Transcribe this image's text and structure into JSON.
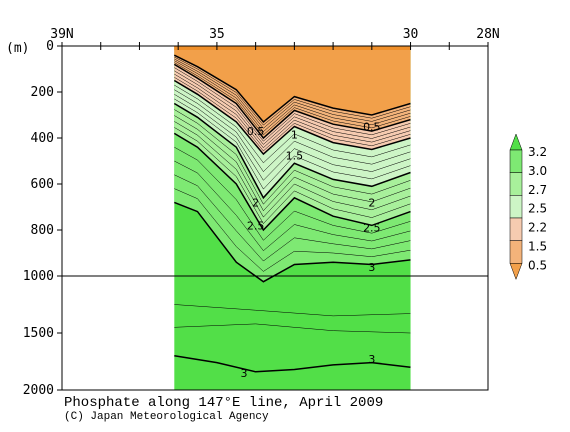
{
  "chart_data": {
    "type": "contour-section",
    "title": "Phosphate along 147°E line, April 2009",
    "credit": "(C) Japan Meteorological Agency",
    "x_tick_labels": [
      "39N",
      "35",
      "30",
      "28N"
    ],
    "y_unit_label": "(m)",
    "y_tick_labels": [
      "0",
      "200",
      "400",
      "600",
      "800",
      "1000",
      "1500",
      "2000"
    ],
    "ylim": [
      0,
      2000
    ],
    "xlim": [
      39,
      28
    ],
    "data_range_lat": [
      36.1,
      30
    ],
    "y_scale": "piecewise linear: 0-1000 m expanded, 1000-2000 m compressed",
    "colorbar_labels": [
      "0.5",
      "1.5",
      "2.2",
      "2.5",
      "2.7",
      "3.0",
      "3.2"
    ],
    "colorbar_colors": [
      "#f2a04a",
      "#f3b37a",
      "#f6cbb0",
      "#cdf5c6",
      "#a8f09b",
      "#7ee973",
      "#52df48"
    ],
    "contours": [
      {
        "value": 0.5,
        "label": "0.5",
        "lat": [
          36.1,
          35.5,
          34.5,
          33.8,
          33.0,
          32.0,
          31.0,
          30.0
        ],
        "depth": [
          40,
          90,
          190,
          330,
          220,
          270,
          300,
          250
        ]
      },
      {
        "value": 1.0,
        "label": "1",
        "lat": [
          36.1,
          35.5,
          34.5,
          33.8,
          33.0,
          32.0,
          31.0,
          30.0
        ],
        "depth": [
          80,
          140,
          250,
          400,
          280,
          340,
          370,
          320
        ]
      },
      {
        "value": 1.5,
        "label": "1.5",
        "lat": [
          36.1,
          35.5,
          34.5,
          33.8,
          33.0,
          32.0,
          31.0,
          30.0
        ],
        "depth": [
          150,
          210,
          330,
          470,
          350,
          420,
          450,
          400
        ]
      },
      {
        "value": 2.0,
        "label": "2",
        "lat": [
          36.1,
          35.5,
          34.5,
          33.8,
          33.0,
          32.0,
          31.0,
          30.0
        ],
        "depth": [
          250,
          310,
          440,
          660,
          510,
          580,
          610,
          550
        ]
      },
      {
        "value": 2.5,
        "label": "2.5",
        "lat": [
          36.1,
          35.5,
          34.5,
          33.8,
          33.0,
          32.0,
          31.0,
          30.0
        ],
        "depth": [
          380,
          440,
          600,
          800,
          660,
          740,
          780,
          720
        ]
      },
      {
        "value": 3.0,
        "label": "3",
        "lat": [
          36.1,
          35.5,
          34.5,
          33.8,
          33.0,
          32.0,
          31.0,
          30.0
        ],
        "depth": [
          680,
          720,
          940,
          1050,
          950,
          940,
          950,
          930
        ]
      },
      {
        "value": 3.0,
        "label": "3",
        "lat": [
          36.1,
          35.0,
          34.0,
          33.0,
          32.0,
          31.0,
          30.0
        ],
        "depth": [
          1700,
          1760,
          1840,
          1820,
          1780,
          1760,
          1800
        ]
      }
    ],
    "contour_labels": [
      {
        "text": "0.5",
        "lat": 34.0,
        "depth": 370
      },
      {
        "text": "0.5",
        "lat": 31.0,
        "depth": 350
      },
      {
        "text": "1",
        "lat": 33.0,
        "depth": 385
      },
      {
        "text": "1.5",
        "lat": 33.0,
        "depth": 475
      },
      {
        "text": "2",
        "lat": 34.0,
        "depth": 680
      },
      {
        "text": "2",
        "lat": 31.0,
        "depth": 680
      },
      {
        "text": "2.5",
        "lat": 34.0,
        "depth": 780
      },
      {
        "text": "2.5",
        "lat": 31.0,
        "depth": 790
      },
      {
        "text": "3",
        "lat": 31.0,
        "depth": 960
      },
      {
        "text": "3",
        "lat": 34.3,
        "depth": 1850
      },
      {
        "text": "3",
        "lat": 31.0,
        "depth": 1730
      }
    ]
  }
}
